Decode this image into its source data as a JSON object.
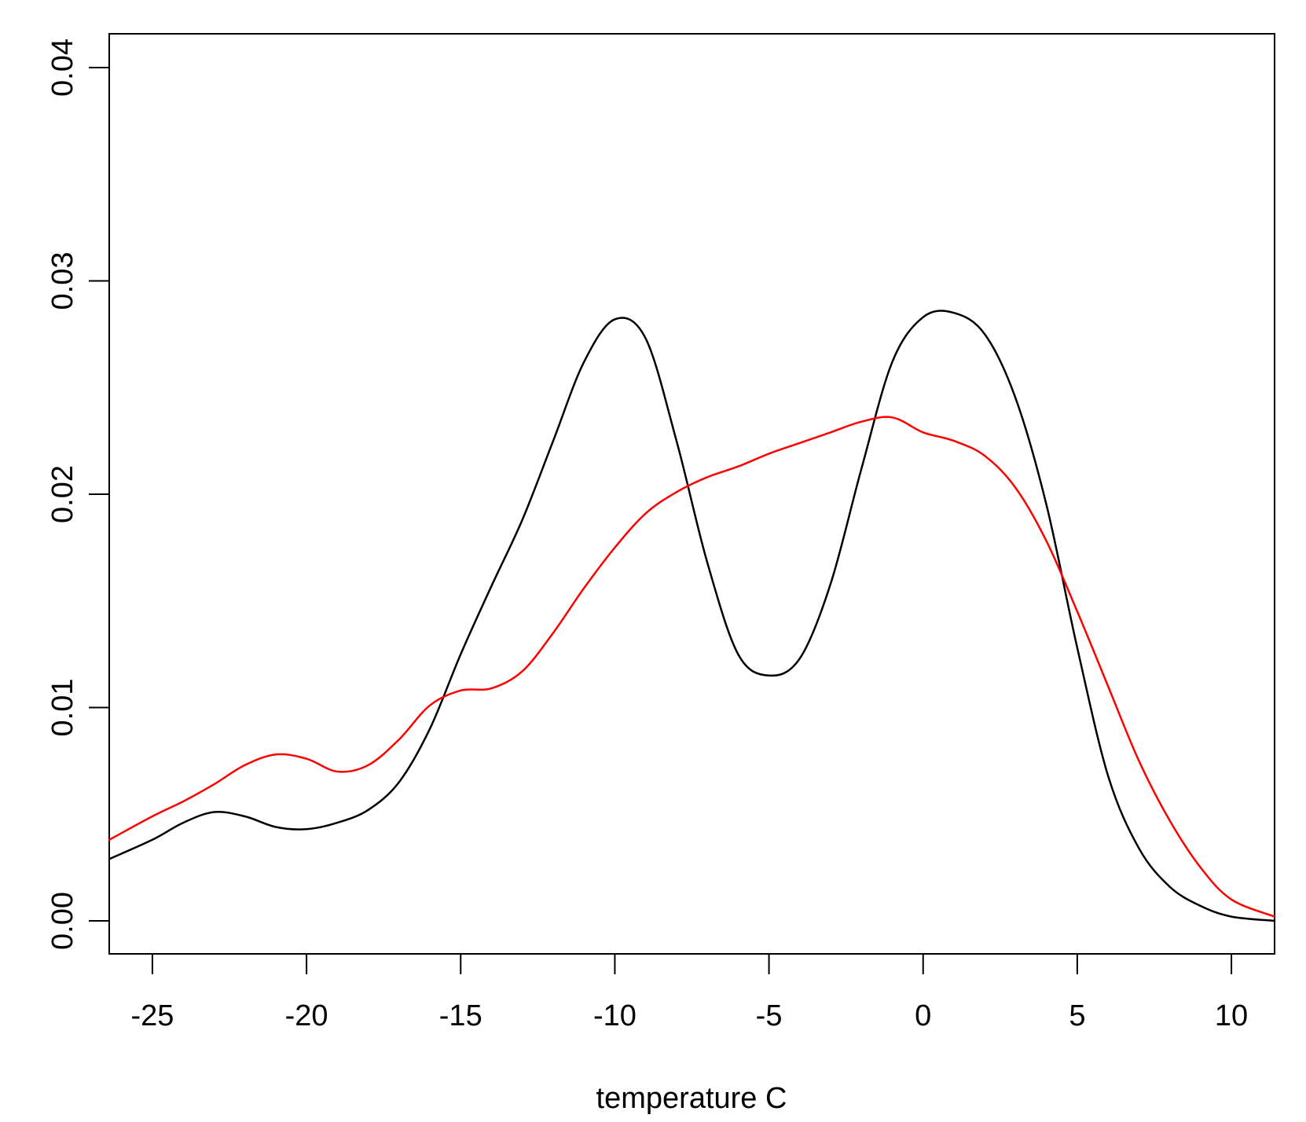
{
  "chart_data": {
    "type": "line",
    "title": "",
    "xlabel": "temperature C",
    "ylabel": "",
    "xlim": [
      -26.4,
      11.4
    ],
    "ylim": [
      0,
      0.04
    ],
    "grid": false,
    "legend": "none",
    "x_ticks": [
      -25,
      -20,
      -15,
      -10,
      -5,
      0,
      5,
      10
    ],
    "x_tick_labels": [
      "-25",
      "-20",
      "-15",
      "-10",
      "-5",
      "0",
      "5",
      "10"
    ],
    "y_ticks": [
      0,
      0.01,
      0.02,
      0.03,
      0.04
    ],
    "y_tick_labels": [
      "0.00",
      "0.01",
      "0.02",
      "0.03",
      "0.04"
    ],
    "series": [
      {
        "color": "#000000",
        "points": [
          [
            -26.4,
            0.0029
          ],
          [
            -25,
            0.0038
          ],
          [
            -24,
            0.0046
          ],
          [
            -23,
            0.0051
          ],
          [
            -22,
            0.0049
          ],
          [
            -21,
            0.0044
          ],
          [
            -20,
            0.0043
          ],
          [
            -19,
            0.0046
          ],
          [
            -18,
            0.0052
          ],
          [
            -17,
            0.0065
          ],
          [
            -16,
            0.009
          ],
          [
            -15,
            0.0125
          ],
          [
            -14,
            0.0157
          ],
          [
            -13,
            0.0188
          ],
          [
            -12,
            0.0225
          ],
          [
            -11,
            0.0262
          ],
          [
            -10,
            0.0282
          ],
          [
            -9,
            0.0273
          ],
          [
            -8,
            0.0225
          ],
          [
            -7,
            0.0168
          ],
          [
            -6,
            0.0125
          ],
          [
            -5,
            0.0115
          ],
          [
            -4,
            0.0123
          ],
          [
            -3,
            0.0158
          ],
          [
            -2,
            0.0212
          ],
          [
            -1,
            0.0262
          ],
          [
            0,
            0.0283
          ],
          [
            1,
            0.0285
          ],
          [
            2,
            0.0275
          ],
          [
            3,
            0.0245
          ],
          [
            4,
            0.0195
          ],
          [
            5,
            0.0128
          ],
          [
            6,
            0.0068
          ],
          [
            7,
            0.0034
          ],
          [
            8,
            0.0016
          ],
          [
            9,
            0.0007
          ],
          [
            10,
            0.0002
          ],
          [
            11.4,
            0.0
          ]
        ]
      },
      {
        "color": "#ff0000",
        "points": [
          [
            -26.4,
            0.0038
          ],
          [
            -25,
            0.0049
          ],
          [
            -24,
            0.0056
          ],
          [
            -23,
            0.0064
          ],
          [
            -22,
            0.0073
          ],
          [
            -21,
            0.0078
          ],
          [
            -20,
            0.0076
          ],
          [
            -19,
            0.007
          ],
          [
            -18,
            0.0073
          ],
          [
            -17,
            0.0085
          ],
          [
            -16,
            0.0101
          ],
          [
            -15,
            0.0108
          ],
          [
            -14,
            0.0109
          ],
          [
            -13,
            0.0117
          ],
          [
            -12,
            0.0135
          ],
          [
            -11,
            0.0156
          ],
          [
            -10,
            0.0175
          ],
          [
            -9,
            0.0191
          ],
          [
            -8,
            0.0201
          ],
          [
            -7,
            0.0208
          ],
          [
            -6,
            0.0213
          ],
          [
            -5,
            0.0219
          ],
          [
            -4,
            0.0224
          ],
          [
            -3,
            0.0229
          ],
          [
            -2,
            0.0234
          ],
          [
            -1,
            0.0236
          ],
          [
            0,
            0.0229
          ],
          [
            1,
            0.0225
          ],
          [
            2,
            0.0218
          ],
          [
            3,
            0.0203
          ],
          [
            4,
            0.0178
          ],
          [
            5,
            0.0145
          ],
          [
            6,
            0.011
          ],
          [
            7,
            0.0075
          ],
          [
            8,
            0.0047
          ],
          [
            9,
            0.0025
          ],
          [
            10,
            0.001
          ],
          [
            11.4,
            0.0002
          ]
        ]
      }
    ]
  }
}
